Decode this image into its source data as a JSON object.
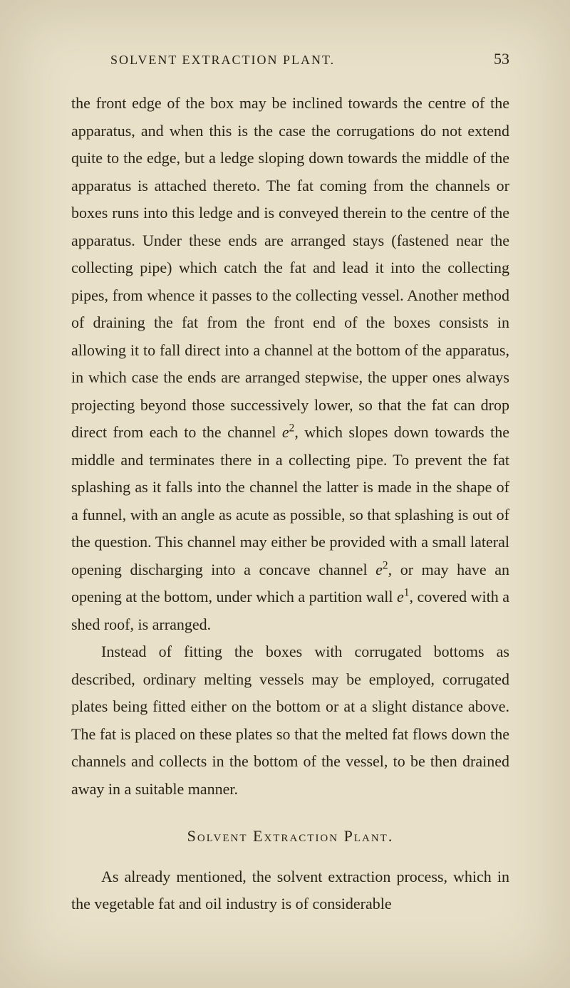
{
  "page": {
    "running_header": "SOLVENT EXTRACTION PLANT.",
    "page_number": "53"
  },
  "paragraphs": {
    "p1": "the front edge of the box may be inclined towards the centre of the apparatus, and when this is the case the corrugations do not extend quite to the edge, but a ledge sloping down towards the middle of the apparatus is attached thereto. The fat coming from the channels or boxes runs into this ledge and is conveyed therein to the centre of the apparatus. Under these ends are arranged stays (fastened near the collecting pipe) which catch the fat and lead it into the col­lecting pipes, from whence it passes to the collecting vessel. Another method of draining the fat from the front end of the boxes consists in allowing it to fall direct into a channel at the bottom of the apparatus, in which case the ends are arranged stepwise, the upper ones always projecting beyond those successively lower, so that the fat can drop direct from each to the channel ",
    "p1_e2_var": "e",
    "p1_e2_sup": "2",
    "p1_cont": ", which slopes down towards the middle and terminates there in a collecting pipe. To prevent the fat splashing as it falls into the channel the latter is made in the shape of a funnel, with an angle as acute as possible, so that splashing is out of the question. This channel may either be provided with a small lateral opening discharging into a concave channel ",
    "p1_e2b_var": "e",
    "p1_e2b_sup": "2",
    "p1_cont2": ", or may have an opening at the bottom, under which a partition wall ",
    "p1_e1_var": "e",
    "p1_e1_sup": "1",
    "p1_cont3": ", covered with a shed roof, is arranged.",
    "p2": "Instead of fitting the boxes with corrugated bottoms as described, ordinary melting vessels may be employed, corru­gated plates being fitted either on the bottom or at a slight distance above. The fat is placed on these plates so that the melted fat flows down the channels and collects in the bottom of the vessel, to be then drained away in a suitable manner.",
    "section_heading": "Solvent Extraction Plant.",
    "p3": "As already mentioned, the solvent extraction process, which in the vegetable fat and oil industry is of considerable"
  },
  "colors": {
    "background": "#e8e0c8",
    "text": "#2a2418"
  },
  "typography": {
    "body_fontsize": 22,
    "header_fontsize": 18,
    "line_height": 1.75,
    "font_family": "Georgia, Times New Roman, serif"
  }
}
